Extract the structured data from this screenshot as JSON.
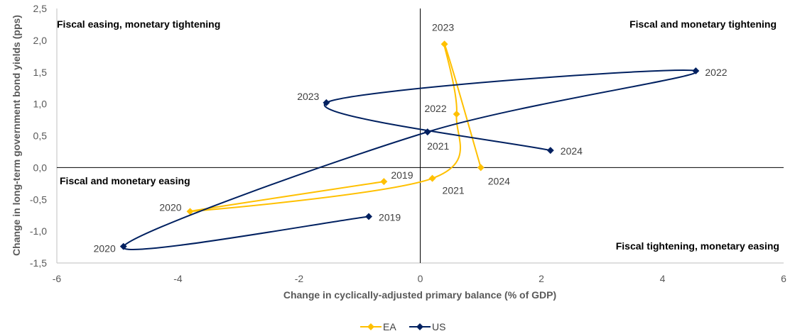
{
  "chart_data": {
    "type": "scatter",
    "title": "",
    "xlabel": "Change in cyclically-adjusted primary balance (% of GDP)",
    "ylabel": "Change in long-term government bond yields (pps)",
    "xlim": [
      -6,
      6
    ],
    "ylim": [
      -1.5,
      2.5
    ],
    "x_ticks": [
      "-6",
      "-4",
      "-2",
      "0",
      "2",
      "4",
      "6"
    ],
    "y_ticks": [
      "2,5",
      "2,0",
      "1,5",
      "1,0",
      "0,5",
      "0,0",
      "-0,5",
      "-1,0",
      "-1,5"
    ],
    "grid": false,
    "legend_position": "bottom",
    "quadrants": {
      "top_left": "Fiscal easing, monetary tightening",
      "top_right": "Fiscal and monetary tightening",
      "bottom_left": "Fiscal and monetary easing",
      "bottom_right": "Fiscal tightening, monetary easing"
    },
    "series": [
      {
        "name": "EA",
        "color": "#FFC000",
        "points": [
          {
            "label": "2019",
            "x": -0.6,
            "y": -0.22
          },
          {
            "label": "2020",
            "x": -3.8,
            "y": -0.69
          },
          {
            "label": "2021",
            "x": 0.2,
            "y": -0.17
          },
          {
            "label": "2022",
            "x": 0.6,
            "y": 0.84
          },
          {
            "label": "2023",
            "x": 0.4,
            "y": 1.94
          },
          {
            "label": "2024",
            "x": 1.0,
            "y": 0.0
          }
        ]
      },
      {
        "name": "US",
        "color": "#002060",
        "points": [
          {
            "label": "2019",
            "x": -0.85,
            "y": -0.77
          },
          {
            "label": "2020",
            "x": -4.9,
            "y": -1.24
          },
          {
            "label": "2021",
            "x": 0.12,
            "y": 0.56
          },
          {
            "label": "2022",
            "x": 4.55,
            "y": 1.52
          },
          {
            "label": "2023",
            "x": -1.55,
            "y": 1.02
          },
          {
            "label": "2024",
            "x": 2.15,
            "y": 0.27
          }
        ]
      }
    ]
  }
}
